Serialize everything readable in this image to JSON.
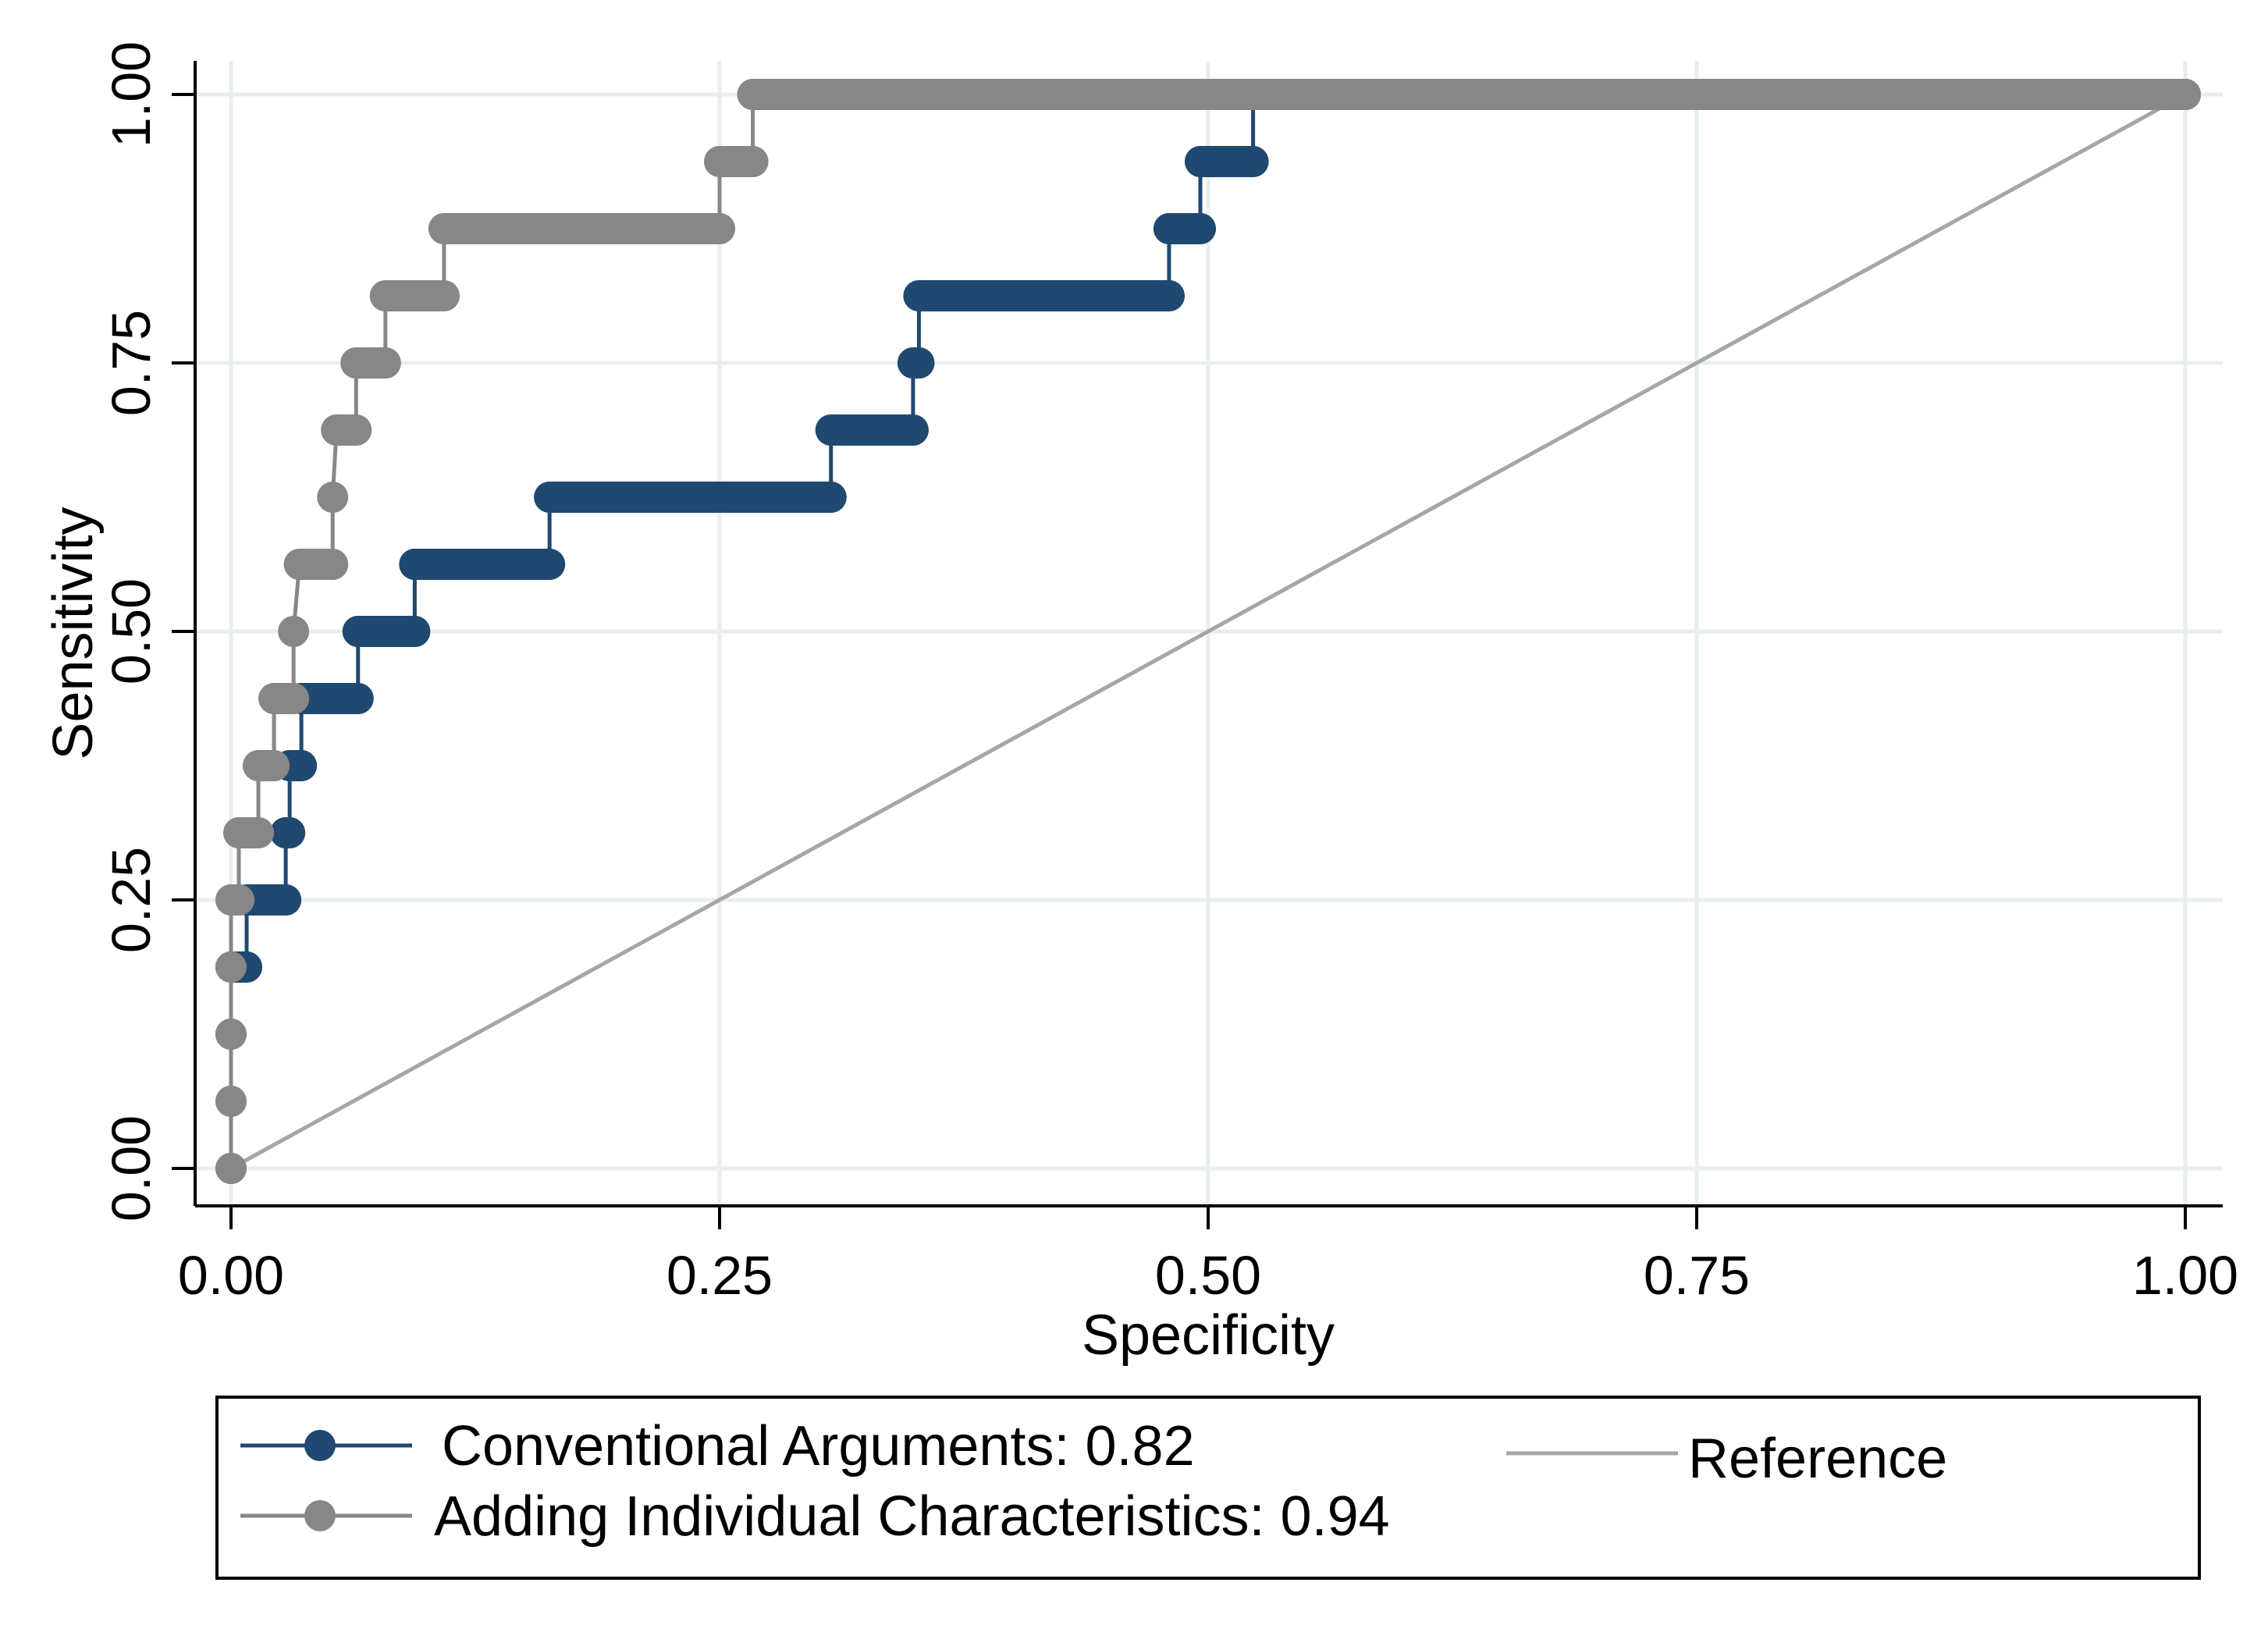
{
  "chart_data": {
    "type": "line",
    "title": "",
    "xlabel": "Specificity",
    "ylabel": "Sensitivity",
    "xlim": [
      0,
      1
    ],
    "ylim": [
      0,
      1
    ],
    "x_ticks": [
      "0.00",
      "0.25",
      "0.50",
      "0.75",
      "1.00"
    ],
    "y_ticks": [
      "0.00",
      "0.25",
      "0.50",
      "0.75",
      "1.00"
    ],
    "grid": true,
    "legend_position": "bottom",
    "series": [
      {
        "name": "Conventional Arguments: 0.82",
        "color": "#1f4970",
        "points": [
          [
            0.0,
            0.0
          ],
          [
            0.0,
            0.0625
          ],
          [
            0.0,
            0.125
          ],
          [
            0.0,
            0.1875
          ],
          [
            0.008,
            0.1875
          ],
          [
            0.008,
            0.25
          ],
          [
            0.028,
            0.25
          ],
          [
            0.028,
            0.3125
          ],
          [
            0.03,
            0.3125
          ],
          [
            0.03,
            0.375
          ],
          [
            0.036,
            0.375
          ],
          [
            0.036,
            0.4375
          ],
          [
            0.065,
            0.4375
          ],
          [
            0.065,
            0.5
          ],
          [
            0.094,
            0.5
          ],
          [
            0.094,
            0.5625
          ],
          [
            0.163,
            0.5625
          ],
          [
            0.163,
            0.625
          ],
          [
            0.307,
            0.625
          ],
          [
            0.307,
            0.6875
          ],
          [
            0.349,
            0.6875
          ],
          [
            0.349,
            0.75
          ],
          [
            0.352,
            0.75
          ],
          [
            0.352,
            0.8125
          ],
          [
            0.48,
            0.8125
          ],
          [
            0.48,
            0.875
          ],
          [
            0.496,
            0.875
          ],
          [
            0.496,
            0.9375
          ],
          [
            0.523,
            0.9375
          ],
          [
            0.523,
            1.0
          ],
          [
            1.0,
            1.0
          ]
        ]
      },
      {
        "name": "Adding Individual Characteristics: 0.94",
        "color": "#878787",
        "points": [
          [
            0.0,
            0.0
          ],
          [
            0.0,
            0.0625
          ],
          [
            0.0,
            0.125
          ],
          [
            0.0,
            0.1875
          ],
          [
            0.0,
            0.25
          ],
          [
            0.004,
            0.25
          ],
          [
            0.004,
            0.3125
          ],
          [
            0.014,
            0.3125
          ],
          [
            0.014,
            0.375
          ],
          [
            0.022,
            0.375
          ],
          [
            0.022,
            0.4375
          ],
          [
            0.032,
            0.4375
          ],
          [
            0.032,
            0.5
          ],
          [
            0.035,
            0.5625
          ],
          [
            0.052,
            0.5625
          ],
          [
            0.052,
            0.625
          ],
          [
            0.054,
            0.6875
          ],
          [
            0.064,
            0.6875
          ],
          [
            0.064,
            0.75
          ],
          [
            0.079,
            0.75
          ],
          [
            0.079,
            0.8125
          ],
          [
            0.109,
            0.8125
          ],
          [
            0.109,
            0.875
          ],
          [
            0.25,
            0.875
          ],
          [
            0.25,
            0.9375
          ],
          [
            0.267,
            0.9375
          ],
          [
            0.267,
            1.0
          ],
          [
            1.0,
            1.0
          ]
        ]
      },
      {
        "name": "Reference",
        "color": "#a6a6a6",
        "points": [
          [
            0,
            0
          ],
          [
            1,
            1
          ]
        ]
      }
    ]
  }
}
